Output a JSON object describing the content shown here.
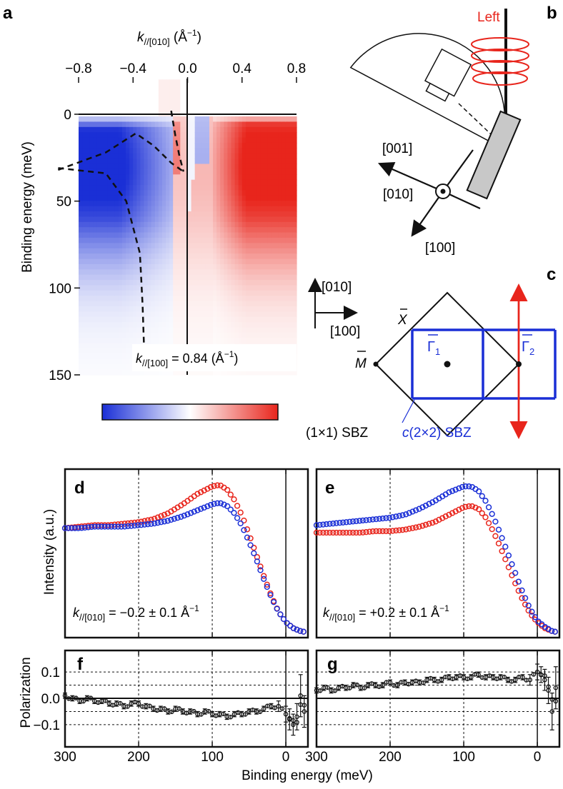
{
  "panel_labels": {
    "a": "a",
    "b": "b",
    "c": "c",
    "d": "d",
    "e": "e",
    "f": "f",
    "g": "g"
  },
  "panel_a": {
    "top_axis_label_k": "k",
    "top_axis_label_sub": "//[010]",
    "top_axis_label_unit": "(Å",
    "top_axis_label_sup": "−1",
    "top_axis_label_close": ")",
    "x_ticks": [
      "−0.8",
      "−0.4",
      "0.0",
      "0.4",
      "0.8"
    ],
    "y_label": "Binding energy (meV)",
    "y_ticks": [
      "0",
      "50",
      "100",
      "150"
    ],
    "annotation_k": "k",
    "annotation_sub": "//[100]",
    "annotation_rest": " = 0.84 (Å",
    "annotation_sup": "−1",
    "annotation_close": ")"
  },
  "panel_b": {
    "light_label": "Left",
    "dir_001": "[001]",
    "dir_010": "[010]",
    "dir_100": "[100]",
    "colors": {
      "light": "#e8251c",
      "sample": "#c8c8c8"
    }
  },
  "panel_c": {
    "axis_010": "[010]",
    "axis_100": "[100]",
    "X_bar": "X",
    "M_bar": "M",
    "Gamma1": "Γ",
    "Gamma1_sub": "1",
    "Gamma2": "Γ",
    "Gamma2_sub": "2",
    "sbz_1x1": "(1×1) SBZ",
    "sbz_c2x2_c": "c",
    "sbz_c2x2_rest": "(2×2) SBZ",
    "colors": {
      "c2x2": "#1a2fd6",
      "cut": "#e8251c"
    }
  },
  "panel_de": {
    "y_label": "Intensity (a.u.)",
    "d_annotation": {
      "k": "k",
      "sub": "//[010]",
      "rest": " = −0.2 ± 0.1 Å",
      "sup": "−1"
    },
    "e_annotation": {
      "k": "k",
      "sub": "//[010]",
      "rest": " = +0.2 ± 0.1 Å",
      "sup": "−1"
    }
  },
  "panel_fg": {
    "y_label": "Polarization",
    "y_ticks": [
      "0.1",
      "0.0",
      "−0.1"
    ],
    "x_ticks": [
      "300",
      "200",
      "100",
      "0"
    ],
    "x_label": "Binding energy (meV)"
  },
  "chart_data": [
    {
      "type": "heatmap",
      "panel": "a",
      "xlabel": "k//[010] (Å−1)",
      "ylabel": "Binding energy (meV)",
      "xlim": [
        -0.8,
        0.8
      ],
      "ylim": [
        150,
        -20
      ],
      "colorscale": [
        "#1a2fd6",
        "#ffffff",
        "#e8251c"
      ],
      "annotation": "k//[100] = 0.84 (Å−1)",
      "dispersion_guides": [
        {
          "k": [
            -0.95,
            -0.6,
            -0.38,
            -0.25,
            -0.12,
            -0.03
          ],
          "E": [
            32,
            22,
            11,
            18,
            28,
            33
          ]
        },
        {
          "k": [
            -0.95,
            -0.6,
            -0.45,
            -0.35,
            -0.33,
            -0.32
          ],
          "E": [
            31,
            34,
            50,
            80,
            110,
            133
          ]
        },
        {
          "k": [
            -0.12,
            -0.09,
            -0.06,
            -0.03
          ],
          "E": [
            -2,
            12,
            24,
            33
          ]
        }
      ]
    },
    {
      "type": "scatter",
      "panel": "d",
      "xlabel": "Binding energy (meV)",
      "ylabel": "Intensity (a.u.)",
      "xlim": [
        300,
        -30
      ],
      "annotation": "k//[010] = −0.2 ± 0.1 Å−1",
      "x": [
        300,
        280,
        260,
        240,
        220,
        200,
        180,
        160,
        140,
        120,
        100,
        90,
        80,
        70,
        60,
        50,
        40,
        30,
        20,
        10,
        0,
        -10,
        -20,
        -30
      ],
      "series": [
        {
          "name": "",
          "color": "#e8251c",
          "values": [
            0.7,
            0.71,
            0.72,
            0.72,
            0.73,
            0.74,
            0.76,
            0.8,
            0.86,
            0.93,
            0.98,
            0.99,
            0.96,
            0.89,
            0.79,
            0.66,
            0.52,
            0.38,
            0.25,
            0.14,
            0.07,
            0.03,
            0.01,
            0.0
          ]
        },
        {
          "name": "",
          "color": "#1a2fd6",
          "values": [
            0.7,
            0.7,
            0.71,
            0.71,
            0.71,
            0.72,
            0.73,
            0.75,
            0.78,
            0.82,
            0.86,
            0.87,
            0.85,
            0.8,
            0.72,
            0.61,
            0.49,
            0.36,
            0.24,
            0.14,
            0.07,
            0.03,
            0.01,
            0.0
          ]
        }
      ]
    },
    {
      "type": "scatter",
      "panel": "e",
      "xlabel": "Binding energy (meV)",
      "ylabel": "Intensity (a.u.)",
      "xlim": [
        300,
        -30
      ],
      "annotation": "k//[010] = +0.2 ± 0.1 Å−1",
      "x": [
        300,
        280,
        260,
        240,
        220,
        200,
        180,
        160,
        140,
        120,
        100,
        90,
        80,
        70,
        60,
        50,
        40,
        30,
        20,
        10,
        0,
        -10,
        -20,
        -30
      ],
      "series": [
        {
          "name": "",
          "color": "#e8251c",
          "values": [
            0.67,
            0.67,
            0.67,
            0.67,
            0.68,
            0.68,
            0.69,
            0.71,
            0.74,
            0.79,
            0.84,
            0.85,
            0.83,
            0.77,
            0.68,
            0.57,
            0.45,
            0.33,
            0.22,
            0.13,
            0.07,
            0.03,
            0.01,
            0.0
          ]
        },
        {
          "name": "",
          "color": "#1a2fd6",
          "values": [
            0.72,
            0.73,
            0.74,
            0.75,
            0.76,
            0.77,
            0.79,
            0.83,
            0.88,
            0.94,
            0.98,
            0.98,
            0.95,
            0.88,
            0.78,
            0.66,
            0.53,
            0.4,
            0.27,
            0.16,
            0.08,
            0.04,
            0.01,
            0.0
          ]
        }
      ]
    },
    {
      "type": "scatter",
      "panel": "f",
      "xlabel": "Binding energy (meV)",
      "ylabel": "Polarization",
      "xlim": [
        300,
        -30
      ],
      "ylim": [
        -0.14,
        0.14
      ],
      "x": [
        300,
        290,
        280,
        270,
        260,
        250,
        240,
        230,
        220,
        210,
        200,
        190,
        180,
        170,
        160,
        150,
        140,
        130,
        120,
        110,
        100,
        90,
        80,
        70,
        60,
        50,
        40,
        30,
        20,
        10,
        0,
        -5,
        -10,
        -15,
        -20,
        -25
      ],
      "values": [
        0.01,
        0.0,
        -0.01,
        0.0,
        -0.01,
        -0.01,
        -0.02,
        -0.02,
        -0.03,
        -0.02,
        -0.02,
        -0.03,
        -0.04,
        -0.04,
        -0.05,
        -0.04,
        -0.05,
        -0.05,
        -0.06,
        -0.05,
        -0.06,
        -0.06,
        -0.07,
        -0.06,
        -0.06,
        -0.05,
        -0.05,
        -0.04,
        -0.03,
        -0.03,
        -0.06,
        -0.08,
        -0.1,
        -0.07,
        0.01,
        -0.05
      ],
      "errors": [
        0.01,
        0.01,
        0.01,
        0.01,
        0.01,
        0.01,
        0.01,
        0.01,
        0.01,
        0.01,
        0.01,
        0.01,
        0.01,
        0.01,
        0.01,
        0.01,
        0.01,
        0.01,
        0.01,
        0.01,
        0.01,
        0.01,
        0.01,
        0.01,
        0.01,
        0.01,
        0.01,
        0.01,
        0.01,
        0.02,
        0.03,
        0.04,
        0.04,
        0.05,
        0.08,
        0.06
      ]
    },
    {
      "type": "scatter",
      "panel": "g",
      "xlabel": "Binding energy (meV)",
      "ylabel": "Polarization",
      "xlim": [
        300,
        -30
      ],
      "ylim": [
        -0.14,
        0.14
      ],
      "x": [
        300,
        290,
        280,
        270,
        260,
        250,
        240,
        230,
        220,
        210,
        200,
        190,
        180,
        170,
        160,
        150,
        140,
        130,
        120,
        110,
        100,
        90,
        80,
        70,
        60,
        50,
        40,
        30,
        20,
        10,
        0,
        -5,
        -10,
        -15,
        -20,
        -25
      ],
      "values": [
        0.03,
        0.04,
        0.03,
        0.04,
        0.04,
        0.05,
        0.04,
        0.05,
        0.05,
        0.05,
        0.06,
        0.05,
        0.06,
        0.06,
        0.06,
        0.07,
        0.07,
        0.07,
        0.08,
        0.08,
        0.08,
        0.08,
        0.09,
        0.08,
        0.08,
        0.08,
        0.07,
        0.07,
        0.08,
        0.07,
        0.1,
        0.09,
        0.07,
        0.03,
        -0.05,
        0.04
      ],
      "errors": [
        0.01,
        0.01,
        0.01,
        0.01,
        0.01,
        0.01,
        0.01,
        0.01,
        0.01,
        0.01,
        0.01,
        0.01,
        0.01,
        0.01,
        0.01,
        0.01,
        0.01,
        0.01,
        0.01,
        0.01,
        0.01,
        0.01,
        0.01,
        0.01,
        0.01,
        0.01,
        0.01,
        0.01,
        0.01,
        0.02,
        0.03,
        0.03,
        0.04,
        0.05,
        0.07,
        0.08
      ]
    }
  ]
}
